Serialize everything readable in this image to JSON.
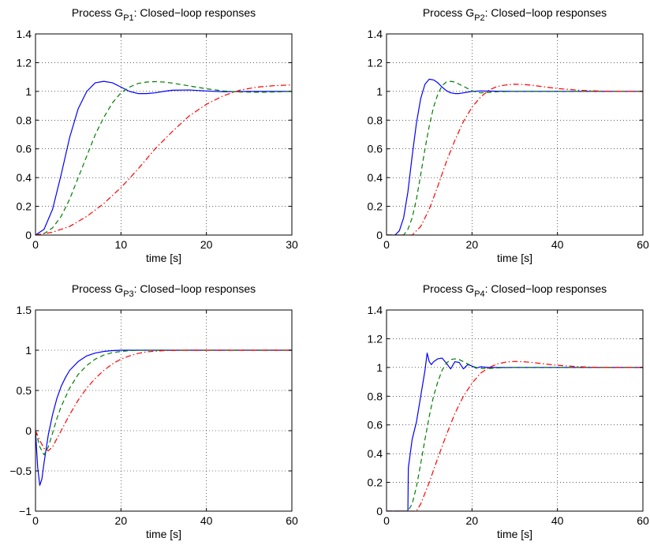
{
  "chart_data": [
    {
      "type": "line",
      "title": "Process G",
      "title_sub": "P1",
      "title_rest": ": Closed−loop responses",
      "xlabel": "time [s]",
      "ylabel": "",
      "xlim": [
        0,
        30
      ],
      "ylim": [
        0,
        1.4
      ],
      "xticks": [
        0,
        10,
        20,
        30
      ],
      "yticks": [
        0,
        0.2,
        0.4,
        0.6,
        0.8,
        1,
        1.2,
        1.4
      ],
      "xtick_labels": [
        "0",
        "10",
        "20",
        "30"
      ],
      "ytick_labels": [
        "0",
        "0.2",
        "0.4",
        "0.6",
        "0.8",
        "1",
        "1.2",
        "1.4"
      ],
      "grid": true,
      "series": [
        {
          "color": "#0000ff",
          "style": "solid",
          "x": [
            0,
            1,
            2,
            3,
            4,
            5,
            6,
            7,
            8,
            9,
            10,
            11,
            12,
            13,
            14,
            15,
            16,
            18,
            20,
            22,
            25,
            30
          ],
          "y": [
            0,
            0.04,
            0.18,
            0.42,
            0.68,
            0.88,
            1.0,
            1.06,
            1.07,
            1.06,
            1.03,
            1.0,
            0.985,
            0.985,
            0.99,
            1.0,
            1.008,
            1.01,
            1.003,
            0.998,
            1.0,
            1.0
          ]
        },
        {
          "color": "#007f00",
          "style": "dashed",
          "x": [
            0,
            1,
            2,
            3,
            4,
            5,
            6,
            7,
            8,
            9,
            10,
            11,
            12,
            13,
            14,
            15,
            16,
            17,
            18,
            20,
            22,
            24,
            26,
            28,
            30
          ],
          "y": [
            0,
            0.01,
            0.05,
            0.13,
            0.25,
            0.4,
            0.55,
            0.7,
            0.82,
            0.92,
            0.99,
            1.03,
            1.055,
            1.065,
            1.068,
            1.065,
            1.058,
            1.048,
            1.038,
            1.018,
            1.003,
            0.996,
            0.994,
            0.996,
            1.0
          ]
        },
        {
          "color": "#ff0000",
          "style": "dashdot",
          "x": [
            0,
            2,
            4,
            6,
            8,
            10,
            12,
            14,
            16,
            18,
            20,
            22,
            24,
            26,
            28,
            30
          ],
          "y": [
            0,
            0.02,
            0.06,
            0.13,
            0.22,
            0.33,
            0.46,
            0.6,
            0.72,
            0.83,
            0.91,
            0.97,
            1.01,
            1.03,
            1.04,
            1.045
          ]
        }
      ]
    },
    {
      "type": "line",
      "title": "Process G",
      "title_sub": "P2",
      "title_rest": ": Closed−loop responses",
      "xlabel": "time [s]",
      "ylabel": "",
      "xlim": [
        0,
        60
      ],
      "ylim": [
        0,
        1.4
      ],
      "xticks": [
        0,
        20,
        40,
        60
      ],
      "yticks": [
        0,
        0.2,
        0.4,
        0.6,
        0.8,
        1,
        1.2,
        1.4
      ],
      "xtick_labels": [
        "0",
        "20",
        "40",
        "60"
      ],
      "ytick_labels": [
        "0",
        "0.2",
        "0.4",
        "0.6",
        "0.8",
        "1",
        "1.2",
        "1.4"
      ],
      "grid": true,
      "series": [
        {
          "color": "#0000ff",
          "style": "solid",
          "x": [
            0,
            2,
            3,
            4,
            5,
            6,
            7,
            8,
            9,
            10,
            11,
            12,
            13,
            14,
            15,
            16,
            17,
            18,
            19,
            20,
            22,
            24,
            30,
            40,
            60
          ],
          "y": [
            0,
            0,
            0.03,
            0.12,
            0.3,
            0.55,
            0.78,
            0.95,
            1.05,
            1.085,
            1.08,
            1.06,
            1.03,
            1.005,
            0.99,
            0.985,
            0.985,
            0.99,
            0.995,
            1.0,
            1.003,
            1.002,
            1.0,
            1.0,
            1.0
          ]
        },
        {
          "color": "#007f00",
          "style": "dashed",
          "x": [
            0,
            4,
            5,
            6,
            7,
            8,
            9,
            10,
            11,
            12,
            13,
            14,
            15,
            16,
            17,
            18,
            19,
            20,
            21,
            22,
            24,
            26,
            30,
            40,
            60
          ],
          "y": [
            0,
            0,
            0.04,
            0.12,
            0.25,
            0.42,
            0.6,
            0.76,
            0.89,
            0.98,
            1.04,
            1.065,
            1.07,
            1.065,
            1.05,
            1.035,
            1.02,
            1.005,
            0.995,
            0.99,
            0.993,
            0.998,
            1.0,
            1.0,
            1.0
          ]
        },
        {
          "color": "#ff0000",
          "style": "dashdot",
          "x": [
            0,
            6,
            8,
            10,
            12,
            14,
            16,
            18,
            20,
            22,
            24,
            26,
            28,
            30,
            32,
            34,
            36,
            40,
            45,
            50,
            55,
            60
          ],
          "y": [
            0,
            0,
            0.06,
            0.18,
            0.34,
            0.51,
            0.66,
            0.79,
            0.89,
            0.96,
            1.01,
            1.035,
            1.045,
            1.05,
            1.048,
            1.043,
            1.035,
            1.02,
            1.008,
            1.002,
            1.0,
            1.0
          ]
        }
      ]
    },
    {
      "type": "line",
      "title": "Process G",
      "title_sub": "P3",
      "title_rest": ": Closed−loop responses",
      "xlabel": "time [s]",
      "ylabel": "",
      "xlim": [
        0,
        60
      ],
      "ylim": [
        -1,
        1.5
      ],
      "xticks": [
        0,
        20,
        40,
        60
      ],
      "yticks": [
        -1,
        -0.5,
        0,
        0.5,
        1,
        1.5
      ],
      "xtick_labels": [
        "0",
        "20",
        "40",
        "60"
      ],
      "ytick_labels": [
        "−1",
        "−0.5",
        "0",
        "0.5",
        "1",
        "1.5"
      ],
      "grid": true,
      "series": [
        {
          "color": "#0000ff",
          "style": "solid",
          "x": [
            0,
            0.5,
            1,
            1.5,
            2,
            3,
            4,
            5,
            6,
            7,
            8,
            10,
            12,
            14,
            16,
            18,
            20,
            25,
            30,
            40,
            60
          ],
          "y": [
            0,
            -0.45,
            -0.68,
            -0.6,
            -0.4,
            -0.05,
            0.2,
            0.4,
            0.55,
            0.66,
            0.75,
            0.86,
            0.93,
            0.965,
            0.985,
            0.995,
            1.0,
            1.0,
            1.0,
            1.0,
            1.0
          ]
        },
        {
          "color": "#007f00",
          "style": "dashed",
          "x": [
            0,
            1,
            2,
            3,
            4,
            5,
            6,
            8,
            10,
            12,
            14,
            16,
            18,
            20,
            22,
            25,
            30,
            40,
            60
          ],
          "y": [
            0,
            -0.2,
            -0.3,
            -0.2,
            -0.03,
            0.15,
            0.3,
            0.53,
            0.7,
            0.81,
            0.89,
            0.94,
            0.97,
            0.985,
            0.995,
            1.0,
            1.0,
            1.0,
            1.0
          ]
        },
        {
          "color": "#ff0000",
          "style": "dashdot",
          "x": [
            0,
            1,
            2,
            3,
            4,
            5,
            6,
            8,
            10,
            12,
            14,
            16,
            18,
            20,
            22,
            24,
            26,
            30,
            35,
            40,
            60
          ],
          "y": [
            0,
            -0.12,
            -0.22,
            -0.25,
            -0.2,
            -0.1,
            0.0,
            0.2,
            0.38,
            0.53,
            0.65,
            0.75,
            0.83,
            0.89,
            0.93,
            0.96,
            0.98,
            0.995,
            1.0,
            1.0,
            1.0
          ]
        }
      ]
    },
    {
      "type": "line",
      "title": "Process G",
      "title_sub": "P4",
      "title_rest": ": Closed−loop responses",
      "xlabel": "time [s]",
      "ylabel": "",
      "xlim": [
        0,
        60
      ],
      "ylim": [
        0,
        1.4
      ],
      "xticks": [
        0,
        20,
        40,
        60
      ],
      "yticks": [
        0,
        0.2,
        0.4,
        0.6,
        0.8,
        1,
        1.2,
        1.4
      ],
      "xtick_labels": [
        "0",
        "20",
        "40",
        "60"
      ],
      "ytick_labels": [
        "0",
        "0.2",
        "0.4",
        "0.6",
        "0.8",
        "1",
        "1.2",
        "1.4"
      ],
      "grid": true,
      "series": [
        {
          "color": "#0000ff",
          "style": "solid",
          "x": [
            0,
            5,
            5.1,
            6,
            7,
            8,
            9,
            9.5,
            10,
            10.5,
            11,
            12,
            13,
            14,
            15,
            16,
            17,
            18,
            19,
            20,
            21,
            22,
            24,
            26,
            30,
            40,
            60
          ],
          "y": [
            0,
            0,
            0.3,
            0.5,
            0.62,
            0.8,
            0.98,
            1.1,
            1.04,
            1.02,
            1.04,
            1.06,
            1.065,
            1.03,
            0.99,
            1.04,
            1.035,
            0.99,
            1.02,
            1.01,
            0.995,
            1.005,
            1.0,
            1.0,
            1.0,
            1.0,
            1.0
          ]
        },
        {
          "color": "#007f00",
          "style": "dashed",
          "x": [
            0,
            5,
            6,
            7,
            8,
            9,
            10,
            11,
            12,
            13,
            14,
            15,
            16,
            17,
            18,
            19,
            20,
            21,
            22,
            24,
            26,
            30,
            40,
            60
          ],
          "y": [
            0,
            0,
            0.05,
            0.17,
            0.33,
            0.5,
            0.66,
            0.8,
            0.9,
            0.98,
            1.03,
            1.055,
            1.06,
            1.055,
            1.04,
            1.025,
            1.01,
            1.0,
            0.993,
            0.993,
            0.997,
            1.0,
            1.0,
            1.0
          ]
        },
        {
          "color": "#ff0000",
          "style": "dashdot",
          "x": [
            0,
            7,
            8,
            10,
            12,
            14,
            16,
            18,
            20,
            22,
            24,
            26,
            28,
            30,
            32,
            34,
            36,
            40,
            45,
            50,
            55,
            60
          ],
          "y": [
            0,
            0,
            0.05,
            0.2,
            0.37,
            0.53,
            0.68,
            0.8,
            0.89,
            0.96,
            1.0,
            1.025,
            1.038,
            1.042,
            1.04,
            1.035,
            1.028,
            1.015,
            1.005,
            1.0,
            1.0,
            1.0
          ]
        }
      ]
    }
  ]
}
